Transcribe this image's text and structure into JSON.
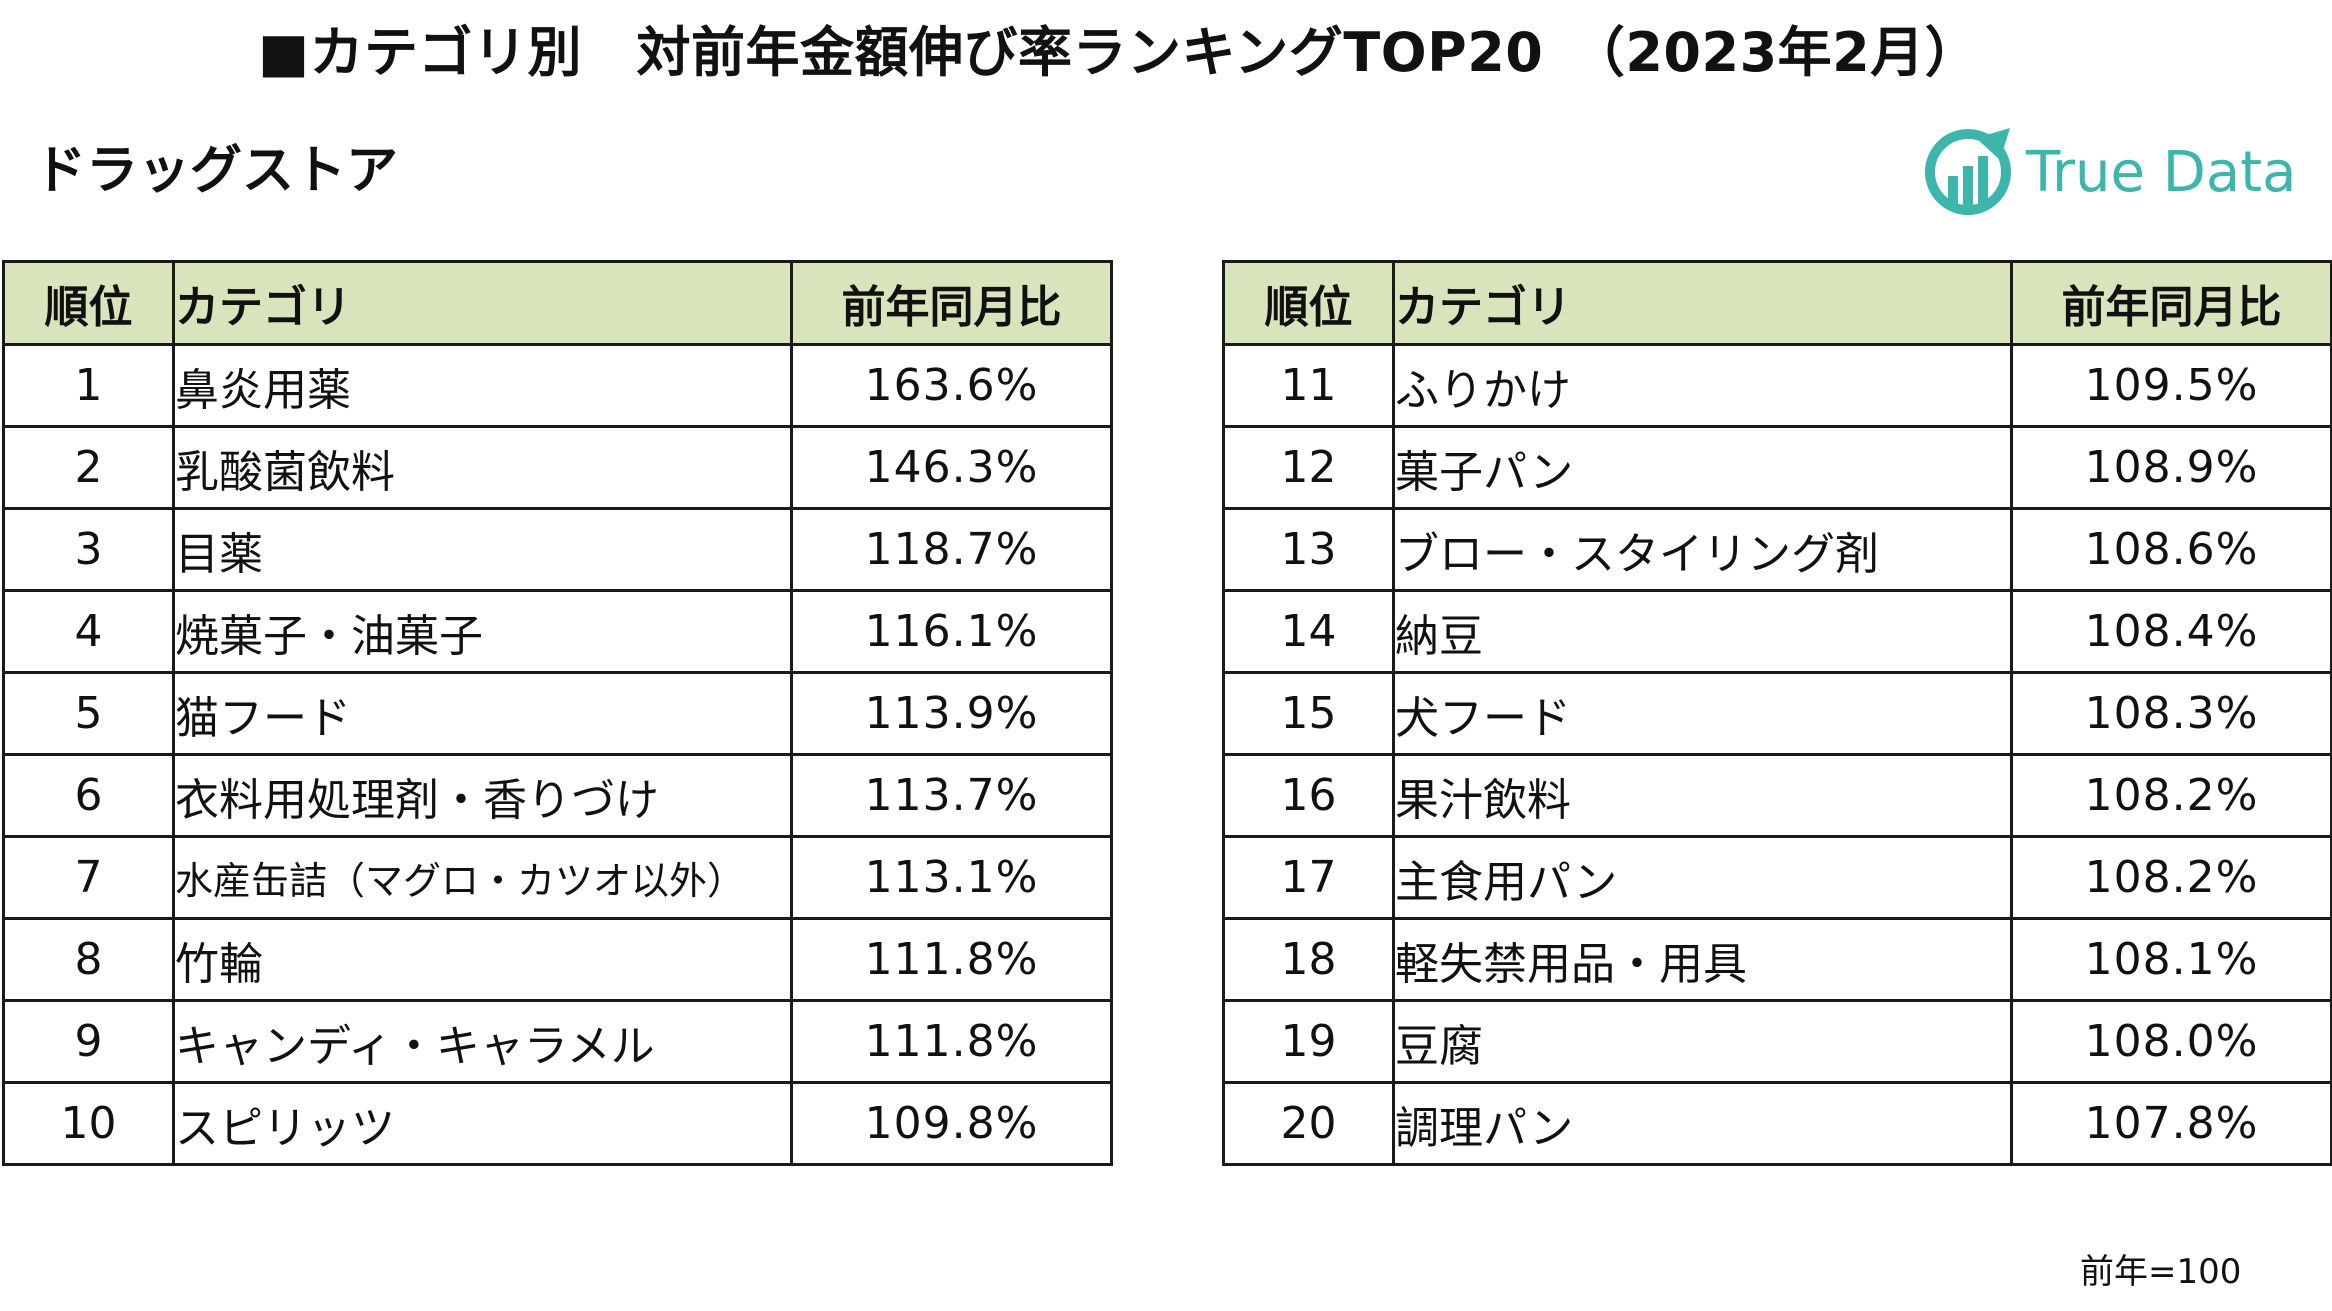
{
  "title": "■カテゴリ別　対前年金額伸び率ランキングTOP20　（2023年2月）",
  "subtitle": "ドラッグストア",
  "logo": {
    "text": "True Data",
    "color": "#3cb6ab"
  },
  "headers": {
    "rank": "順位",
    "category": "カテゴリ",
    "ratio": "前年同月比"
  },
  "colors": {
    "header_bg": "#d8e4bc",
    "border": "#1a1a1a"
  },
  "left_rows": [
    {
      "rank": "1",
      "category": "鼻炎用薬",
      "ratio": "163.6%"
    },
    {
      "rank": "2",
      "category": "乳酸菌飲料",
      "ratio": "146.3%"
    },
    {
      "rank": "3",
      "category": "目薬",
      "ratio": "118.7%"
    },
    {
      "rank": "4",
      "category": "焼菓子・油菓子",
      "ratio": "116.1%"
    },
    {
      "rank": "5",
      "category": "猫フード",
      "ratio": "113.9%"
    },
    {
      "rank": "6",
      "category": "衣料用処理剤・香りづけ",
      "ratio": "113.7%"
    },
    {
      "rank": "7",
      "category": "水産缶詰（マグロ・カツオ以外）",
      "ratio": "113.1%"
    },
    {
      "rank": "8",
      "category": "竹輪",
      "ratio": "111.8%"
    },
    {
      "rank": "9",
      "category": "キャンディ・キャラメル",
      "ratio": "111.8%"
    },
    {
      "rank": "10",
      "category": "スピリッツ",
      "ratio": "109.8%"
    }
  ],
  "right_rows": [
    {
      "rank": "11",
      "category": "ふりかけ",
      "ratio": "109.5%"
    },
    {
      "rank": "12",
      "category": "菓子パン",
      "ratio": "108.9%"
    },
    {
      "rank": "13",
      "category": "ブロー・スタイリング剤",
      "ratio": "108.6%"
    },
    {
      "rank": "14",
      "category": "納豆",
      "ratio": "108.4%"
    },
    {
      "rank": "15",
      "category": "犬フード",
      "ratio": "108.3%"
    },
    {
      "rank": "16",
      "category": "果汁飲料",
      "ratio": "108.2%"
    },
    {
      "rank": "17",
      "category": "主食用パン",
      "ratio": "108.2%"
    },
    {
      "rank": "18",
      "category": "軽失禁用品・用具",
      "ratio": "108.1%"
    },
    {
      "rank": "19",
      "category": "豆腐",
      "ratio": "108.0%"
    },
    {
      "rank": "20",
      "category": "調理パン",
      "ratio": "107.8%"
    }
  ],
  "footnote": "前年=100"
}
